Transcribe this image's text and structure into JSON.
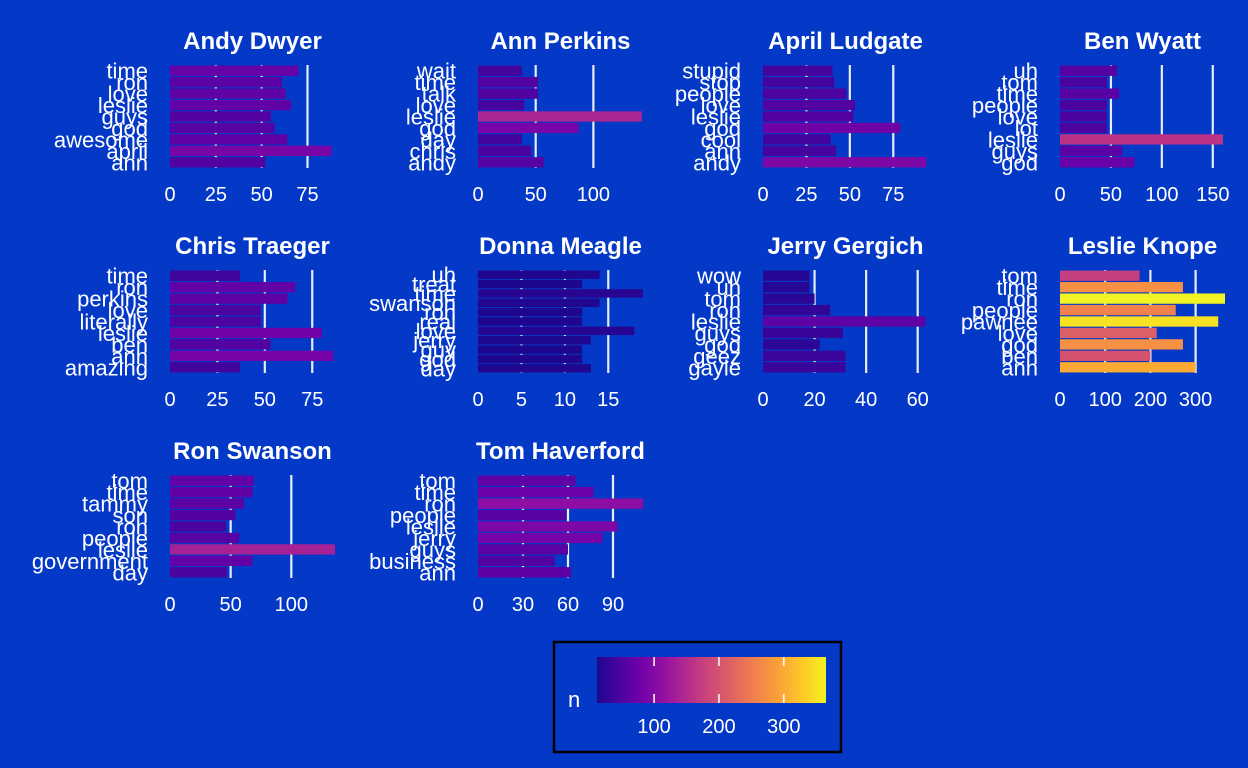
{
  "chart_data": {
    "type": "bar",
    "orientation": "horizontal",
    "faceted_by": "character",
    "axis_scales": "free",
    "colors": {
      "background": "#0439c8",
      "text": "#ffffff",
      "gridline": "#e8ecf6",
      "legend_border": "#000000"
    },
    "color_scale": {
      "name": "plasma",
      "domain": [
        0,
        370
      ],
      "stops": [
        "#0d0887",
        "#41049d",
        "#6a00a8",
        "#8f0da4",
        "#b12a90",
        "#cc4778",
        "#e16462",
        "#f2844b",
        "#fca636",
        "#fcce25",
        "#f0f921"
      ]
    },
    "legend": {
      "title": "n",
      "ticks": [
        100,
        200,
        300
      ],
      "placement": "bottom"
    },
    "facets": [
      {
        "title": "Andy Dwyer",
        "categories": [
          "ann",
          "april",
          "awesome",
          "god",
          "guys",
          "leslie",
          "love",
          "ron",
          "time"
        ],
        "values": [
          52,
          88,
          64,
          57,
          55,
          66,
          63,
          61,
          70
        ],
        "xlim": [
          0,
          90
        ],
        "xticks": [
          0,
          25,
          50,
          75
        ]
      },
      {
        "title": "Ann Perkins",
        "categories": [
          "andy",
          "chris",
          "day",
          "god",
          "leslie",
          "love",
          "talk",
          "time",
          "wait"
        ],
        "values": [
          57,
          46,
          38,
          87,
          142,
          40,
          52,
          52,
          38
        ],
        "xlim": [
          0,
          143
        ],
        "xticks": [
          0,
          50,
          100
        ]
      },
      {
        "title": "April Ludgate",
        "categories": [
          "andy",
          "ann",
          "cool",
          "god",
          "leslie",
          "love",
          "people",
          "stop",
          "stupid"
        ],
        "values": [
          94,
          42,
          39,
          79,
          52,
          53,
          48,
          41,
          40
        ],
        "xlim": [
          0,
          95
        ],
        "xticks": [
          0,
          25,
          50,
          75
        ]
      },
      {
        "title": "Ben Wyatt",
        "categories": [
          "god",
          "guys",
          "leslie",
          "lot",
          "love",
          "people",
          "time",
          "tom",
          "uh"
        ],
        "values": [
          73,
          61,
          160,
          46,
          46,
          46,
          58,
          46,
          56
        ],
        "xlim": [
          0,
          162
        ],
        "xticks": [
          0,
          50,
          100,
          150
        ]
      },
      {
        "title": "Chris Traeger",
        "categories": [
          "amazing",
          "ann",
          "ben",
          "leslie",
          "literally",
          "love",
          "perkins",
          "ron",
          "time"
        ],
        "values": [
          37,
          86,
          53,
          80,
          48,
          48,
          62,
          66,
          37
        ],
        "xlim": [
          0,
          87
        ],
        "xticks": [
          0,
          25,
          50,
          75
        ]
      },
      {
        "title": "Donna Meagle",
        "categories": [
          "day",
          "god",
          "guy",
          "jerry",
          "love",
          "real",
          "ron",
          "swanson",
          "time",
          "treat",
          "uh"
        ],
        "values": [
          13,
          12,
          12,
          13,
          18,
          12,
          12,
          14,
          19,
          12,
          14
        ],
        "xlim": [
          0,
          19
        ],
        "xticks": [
          0,
          5,
          10,
          15
        ]
      },
      {
        "title": "Jerry Gergich",
        "categories": [
          "gayle",
          "geez",
          "god",
          "guys",
          "leslie",
          "ron",
          "tom",
          "uh",
          "wow"
        ],
        "values": [
          32,
          32,
          22,
          31,
          63,
          26,
          20,
          18,
          18
        ],
        "xlim": [
          0,
          64
        ],
        "xticks": [
          0,
          20,
          40,
          60
        ]
      },
      {
        "title": "Leslie Knope",
        "categories": [
          "ann",
          "ben",
          "god",
          "love",
          "pawnee",
          "people",
          "ron",
          "time",
          "tom"
        ],
        "values": [
          300,
          200,
          272,
          214,
          350,
          256,
          365,
          272,
          176
        ],
        "xlim": [
          0,
          365
        ],
        "xticks": [
          0,
          100,
          200,
          300
        ]
      },
      {
        "title": "Ron Swanson",
        "categories": [
          "day",
          "government",
          "leslie",
          "people",
          "ron",
          "son",
          "tammy",
          "time",
          "tom"
        ],
        "values": [
          47,
          68,
          136,
          57,
          46,
          54,
          61,
          68,
          69
        ],
        "xlim": [
          0,
          136
        ],
        "xticks": [
          0,
          50,
          100
        ]
      },
      {
        "title": "Tom Haverford",
        "categories": [
          "ann",
          "business",
          "guys",
          "jerry",
          "leslie",
          "people",
          "ron",
          "time",
          "tom"
        ],
        "values": [
          62,
          51,
          60,
          83,
          93,
          59,
          110,
          77,
          65
        ],
        "xlim": [
          0,
          110
        ],
        "xticks": [
          0,
          30,
          60,
          90
        ]
      }
    ]
  }
}
